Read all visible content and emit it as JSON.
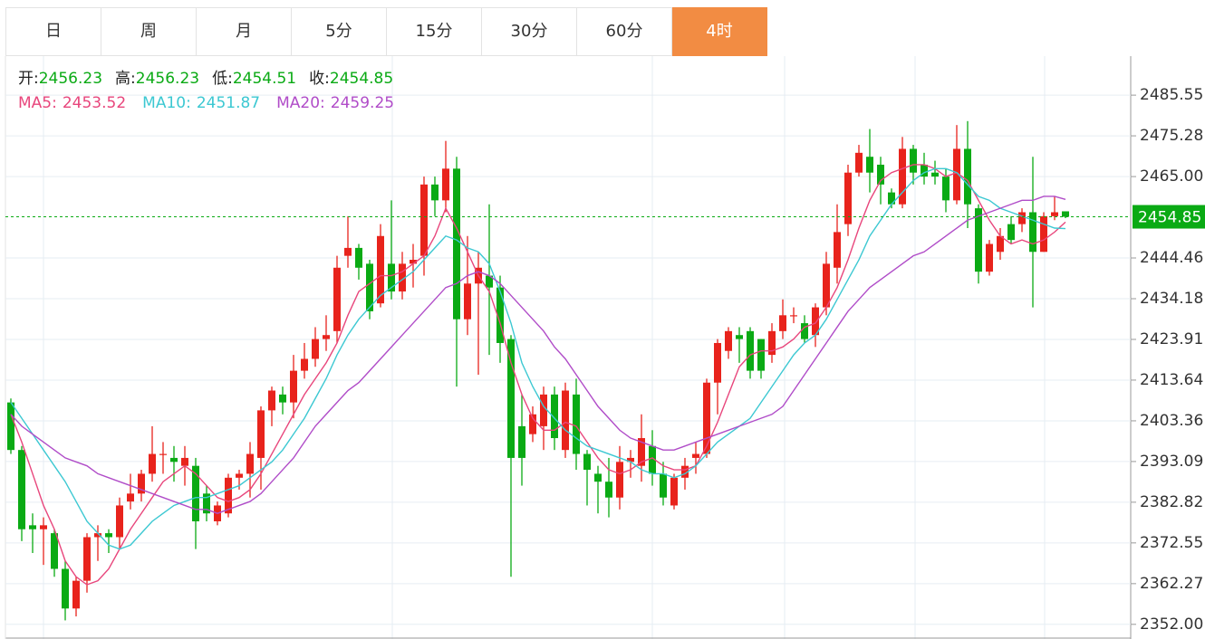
{
  "tabs": [
    "日",
    "周",
    "月",
    "5分",
    "15分",
    "30分",
    "60分",
    "4时"
  ],
  "active_tab": "4时",
  "chart_data": {
    "type": "candlestick",
    "header": [
      {
        "label": "开:",
        "path": 0
      },
      {
        "label": "高:",
        "path": 1
      },
      {
        "label": "低:",
        "path": 2
      },
      {
        "label": "收:",
        "path": 3
      }
    ],
    "up_color": "#e8231c",
    "down_color": "#0aaa14",
    "ohlc": [
      [
        2408,
        2409,
        2395,
        2396
      ],
      [
        2396,
        2397,
        2373,
        2376
      ],
      [
        2377,
        2380,
        2370,
        2376
      ],
      [
        2376,
        2379,
        2367,
        2377
      ],
      [
        2375,
        2376,
        2364,
        2366
      ],
      [
        2366,
        2368,
        2353,
        2356
      ],
      [
        2356,
        2364,
        2354,
        2363
      ],
      [
        2363,
        2375,
        2360,
        2374
      ],
      [
        2374,
        2377,
        2368,
        2375
      ],
      [
        2375,
        2376,
        2370,
        2374
      ],
      [
        2374,
        2384,
        2371,
        2382
      ],
      [
        2383,
        2390,
        2381,
        2385
      ],
      [
        2385,
        2391,
        2383,
        2390
      ],
      [
        2390,
        2402,
        2388,
        2395
      ],
      [
        2395,
        2398,
        2390,
        2395
      ],
      [
        2394,
        2397,
        2388,
        2393
      ],
      [
        2392,
        2397,
        2387,
        2394
      ],
      [
        2392,
        2394,
        2371,
        2378
      ],
      [
        2385,
        2387,
        2378,
        2380
      ],
      [
        2378,
        2383,
        2377,
        2382
      ],
      [
        2380,
        2390,
        2379,
        2389
      ],
      [
        2389,
        2391,
        2386,
        2390
      ],
      [
        2390,
        2398,
        2384,
        2395
      ],
      [
        2394,
        2407,
        2386,
        2406
      ],
      [
        2406,
        2412,
        2402,
        2411
      ],
      [
        2410,
        2412,
        2405,
        2408
      ],
      [
        2408,
        2420,
        2404,
        2416
      ],
      [
        2416,
        2423,
        2414,
        2419
      ],
      [
        2419,
        2427,
        2417,
        2424
      ],
      [
        2424,
        2430,
        2421,
        2425
      ],
      [
        2426,
        2445,
        2423,
        2442
      ],
      [
        2445,
        2455,
        2442,
        2447
      ],
      [
        2447,
        2448,
        2439,
        2442
      ],
      [
        2443,
        2444,
        2429,
        2431
      ],
      [
        2433,
        2453,
        2432,
        2450
      ],
      [
        2443,
        2459,
        2434,
        2436
      ],
      [
        2436,
        2446,
        2434,
        2443
      ],
      [
        2443,
        2448,
        2437,
        2444
      ],
      [
        2445,
        2465,
        2440,
        2463
      ],
      [
        2463,
        2465,
        2455,
        2459
      ],
      [
        2459,
        2474,
        2456,
        2467
      ],
      [
        2467,
        2470,
        2412,
        2429
      ],
      [
        2429,
        2450,
        2425,
        2438
      ],
      [
        2438,
        2446,
        2415,
        2442
      ],
      [
        2440,
        2458,
        2420,
        2437
      ],
      [
        2437,
        2440,
        2418,
        2423
      ],
      [
        2424,
        2425,
        2364,
        2394
      ],
      [
        2402,
        2410,
        2387,
        2394
      ],
      [
        2400,
        2407,
        2398,
        2405
      ],
      [
        2402,
        2412,
        2396,
        2410
      ],
      [
        2410,
        2412,
        2396,
        2399
      ],
      [
        2396,
        2413,
        2394,
        2411
      ],
      [
        2410,
        2414,
        2391,
        2395
      ],
      [
        2395,
        2396,
        2382,
        2391
      ],
      [
        2390,
        2392,
        2380,
        2388
      ],
      [
        2388,
        2394,
        2379,
        2384
      ],
      [
        2384,
        2397,
        2381,
        2393
      ],
      [
        2393,
        2396,
        2389,
        2394
      ],
      [
        2392,
        2405,
        2388,
        2399
      ],
      [
        2397,
        2401,
        2387,
        2390
      ],
      [
        2390,
        2393,
        2382,
        2384
      ],
      [
        2382,
        2390,
        2381,
        2389
      ],
      [
        2389,
        2394,
        2386,
        2392
      ],
      [
        2394,
        2398,
        2390,
        2395
      ],
      [
        2395,
        2414,
        2394,
        2413
      ],
      [
        2413,
        2424,
        2405,
        2423
      ],
      [
        2421,
        2427,
        2419,
        2426
      ],
      [
        2425,
        2427,
        2418,
        2424
      ],
      [
        2426,
        2427,
        2414,
        2416
      ],
      [
        2424,
        2424,
        2414,
        2416
      ],
      [
        2420,
        2428,
        2418,
        2426
      ],
      [
        2426,
        2434,
        2424,
        2430
      ],
      [
        2430,
        2432,
        2428,
        2430
      ],
      [
        2428,
        2430,
        2423,
        2424
      ],
      [
        2425,
        2433,
        2422,
        2432
      ],
      [
        2432,
        2446,
        2430,
        2443
      ],
      [
        2442,
        2458,
        2438,
        2451
      ],
      [
        2453,
        2468,
        2450,
        2466
      ],
      [
        2466,
        2473,
        2465,
        2471
      ],
      [
        2470,
        2477,
        2461,
        2466
      ],
      [
        2468,
        2470,
        2458,
        2463
      ],
      [
        2461,
        2462,
        2457,
        2458
      ],
      [
        2458,
        2475,
        2457,
        2472
      ],
      [
        2472,
        2473,
        2463,
        2466
      ],
      [
        2468,
        2471,
        2463,
        2465
      ],
      [
        2466,
        2469,
        2463,
        2465
      ],
      [
        2465,
        2467,
        2456,
        2459
      ],
      [
        2459,
        2478,
        2458,
        2472
      ],
      [
        2472,
        2479,
        2452,
        2458
      ],
      [
        2457,
        2458,
        2438,
        2441
      ],
      [
        2441,
        2449,
        2440,
        2448
      ],
      [
        2446,
        2452,
        2444,
        2450
      ],
      [
        2453,
        2455,
        2448,
        2449
      ],
      [
        2453,
        2457,
        2451,
        2456
      ],
      [
        2456,
        2470,
        2432,
        2446
      ],
      [
        2446,
        2456,
        2446,
        2455
      ],
      [
        2455,
        2460,
        2454,
        2456
      ],
      [
        2456.23,
        2456.23,
        2454.51,
        2454.85
      ]
    ],
    "series": [
      {
        "name": "MA5:",
        "color": "#e8467c",
        "values": [
          2405,
          2398,
          2390,
          2382,
          2376,
          2368,
          2364,
          2362,
          2363,
          2366,
          2371,
          2376,
          2380,
          2384,
          2388,
          2390,
          2392,
          2390,
          2387,
          2384,
          2383,
          2384,
          2386,
          2390,
          2395,
          2400,
          2405,
          2410,
          2414,
          2418,
          2423,
          2430,
          2436,
          2438,
          2440,
          2440,
          2441,
          2443,
          2445,
          2450,
          2457,
          2452,
          2446,
          2440,
          2436,
          2428,
          2418,
          2410,
          2404,
          2401,
          2401,
          2403,
          2402,
          2398,
          2394,
          2391,
          2390,
          2391,
          2393,
          2394,
          2392,
          2391,
          2391,
          2392,
          2397,
          2403,
          2410,
          2417,
          2420,
          2421,
          2421,
          2422,
          2424,
          2427,
          2428,
          2432,
          2437,
          2444,
          2452,
          2459,
          2464,
          2466,
          2467,
          2468,
          2468,
          2467,
          2465,
          2466,
          2464,
          2459,
          2454,
          2450,
          2448,
          2449,
          2448,
          2449,
          2451,
          2453.52
        ]
      },
      {
        "name": "MA10:",
        "color": "#3cc8d2",
        "values": [
          2408,
          2404,
          2400,
          2396,
          2392,
          2388,
          2383,
          2378,
          2375,
          2372,
          2371,
          2372,
          2375,
          2378,
          2380,
          2382,
          2383,
          2384,
          2384,
          2385,
          2386,
          2387,
          2389,
          2391,
          2393,
          2396,
          2400,
          2404,
          2409,
          2414,
          2420,
          2425,
          2429,
          2432,
          2435,
          2437,
          2439,
          2441,
          2444,
          2447,
          2450,
          2449,
          2447,
          2446,
          2443,
          2436,
          2428,
          2418,
          2412,
          2407,
          2404,
          2401,
          2399,
          2397,
          2396,
          2395,
          2394,
          2393,
          2391,
          2390,
          2390,
          2389,
          2390,
          2392,
          2395,
          2398,
          2400,
          2402,
          2404,
          2408,
          2412,
          2416,
          2420,
          2423,
          2425,
          2429,
          2434,
          2439,
          2444,
          2450,
          2454,
          2458,
          2461,
          2464,
          2466,
          2467,
          2467,
          2466,
          2463,
          2460,
          2459,
          2457,
          2456,
          2455,
          2454,
          2453,
          2452,
          2451.87
        ]
      },
      {
        "name": "MA20:",
        "color": "#b04cc8",
        "values": [
          2405,
          2402,
          2400,
          2398,
          2396,
          2394,
          2393,
          2392,
          2390,
          2389,
          2388,
          2387,
          2386,
          2385,
          2384,
          2383,
          2382,
          2381,
          2381,
          2380,
          2381,
          2382,
          2383,
          2385,
          2388,
          2391,
          2394,
          2398,
          2402,
          2405,
          2408,
          2411,
          2413,
          2416,
          2419,
          2422,
          2425,
          2428,
          2431,
          2434,
          2437,
          2438,
          2440,
          2441,
          2440,
          2438,
          2435,
          2432,
          2429,
          2426,
          2422,
          2419,
          2415,
          2411,
          2407,
          2404,
          2401,
          2399,
          2398,
          2397,
          2396,
          2396,
          2397,
          2398,
          2399,
          2400,
          2401,
          2402,
          2403,
          2404,
          2405,
          2407,
          2411,
          2415,
          2419,
          2423,
          2427,
          2431,
          2434,
          2437,
          2439,
          2441,
          2443,
          2445,
          2446,
          2448,
          2450,
          2452,
          2454,
          2455,
          2456,
          2457,
          2458,
          2459,
          2459,
          2460,
          2460,
          2459.25
        ]
      }
    ],
    "ylim": [
      2348.3,
      2495.4
    ],
    "yticks": [
      {
        "value": 2352,
        "label": "2352.00"
      },
      2362.27,
      2372.55,
      2382.82,
      2393.09,
      2403.36,
      2413.64,
      2423.91,
      2434.18,
      2444.46,
      {
        "value": 2465,
        "label": "2465.00"
      },
      2475.28,
      2485.55
    ],
    "grid": true
  }
}
